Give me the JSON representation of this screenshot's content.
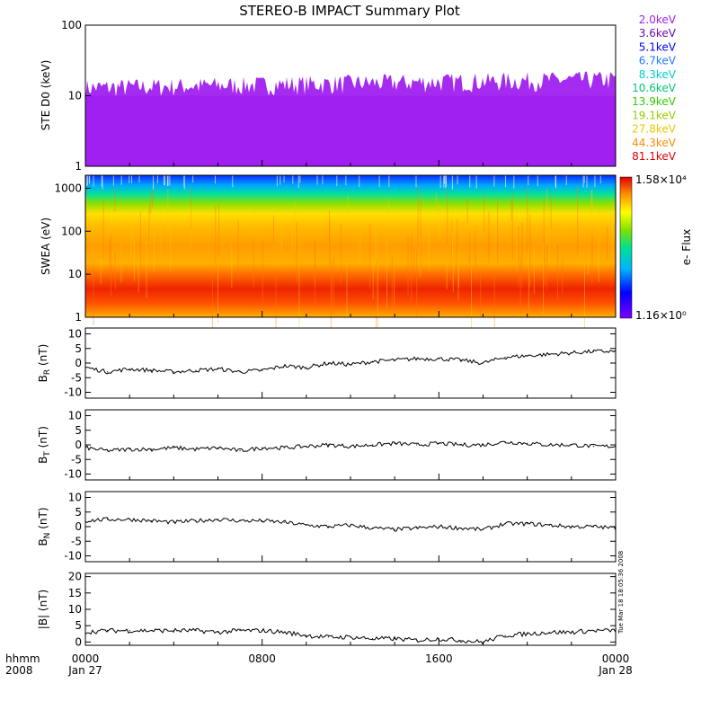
{
  "chart_data": [
    {
      "panel": "ste",
      "type": "line",
      "title": "STEREO-B IMPACT Summary Plot",
      "ylabel": "STE D0 (keV)",
      "yscale": "log",
      "ylim": [
        1,
        100
      ],
      "yticks": [
        "1",
        "10",
        "100"
      ],
      "legend_position": "right",
      "series": [
        {
          "name": "2.0keV",
          "color": "#a020f0",
          "level": 10
        },
        {
          "name": "3.6keV",
          "color": "#6a0dad",
          "level": 5
        },
        {
          "name": "5.1keV",
          "color": "#0000ff",
          "level": 3
        },
        {
          "name": "6.7keV",
          "color": "#1e7cff",
          "level": 2.3
        },
        {
          "name": "8.3keV",
          "color": "#00ced1",
          "level": 1.9
        },
        {
          "name": "10.6keV",
          "color": "#00c878",
          "level": 1.6
        },
        {
          "name": "13.9keV",
          "color": "#33cc00",
          "level": 1.4
        },
        {
          "name": "19.1keV",
          "color": "#99cc00",
          "level": 1.25
        },
        {
          "name": "27.8keV",
          "color": "#e6c800",
          "level": 1.15
        },
        {
          "name": "44.3keV",
          "color": "#ff8c00",
          "level": 1.07
        },
        {
          "name": "81.1keV",
          "color": "#e00000",
          "level": 1.02
        }
      ]
    },
    {
      "panel": "swea",
      "type": "heatmap",
      "ylabel": "SWEA (eV)",
      "yscale": "log",
      "ylim": [
        1,
        2000
      ],
      "yticks": [
        "1",
        "10",
        "100",
        "1000"
      ],
      "colorbar": {
        "label": "e- Flux",
        "max_label": "1.58×10⁴",
        "min_label": "1.16×10⁰"
      }
    },
    {
      "panel": "br",
      "type": "line",
      "ylabel": "B_R (nT)",
      "ylabel_main": "B",
      "ylabel_sub": "R",
      "ylabel_unit": "(nT)",
      "ylim": [
        -12,
        12
      ],
      "yticks": [
        -10,
        -5,
        0,
        5,
        10
      ],
      "x": [
        0,
        1,
        2,
        3,
        4,
        5,
        6,
        7,
        8,
        9,
        10,
        11,
        12,
        13,
        14,
        15,
        16,
        17,
        18,
        19,
        20,
        21,
        22,
        23,
        24
      ],
      "y": [
        -1.5,
        -3,
        -2,
        -2.5,
        -3,
        -2.5,
        -2,
        -3,
        -2.5,
        -1,
        -1.5,
        0,
        -0.5,
        0.5,
        1,
        1.5,
        1.5,
        1,
        0,
        2,
        2.5,
        3,
        3.5,
        4,
        4
      ]
    },
    {
      "panel": "bt",
      "type": "line",
      "ylabel": "B_T (nT)",
      "ylabel_main": "B",
      "ylabel_sub": "T",
      "ylabel_unit": "(nT)",
      "ylim": [
        -12,
        12
      ],
      "yticks": [
        -10,
        -5,
        0,
        5,
        10
      ],
      "x": [
        0,
        1,
        2,
        3,
        4,
        5,
        6,
        7,
        8,
        9,
        10,
        11,
        12,
        13,
        14,
        15,
        16,
        17,
        18,
        19,
        20,
        21,
        22,
        23,
        24
      ],
      "y": [
        -1,
        -2,
        -1.5,
        -1.5,
        -1,
        -1.5,
        -1,
        -2,
        -1,
        -1,
        -0.5,
        0,
        -0.5,
        0,
        0.5,
        0,
        0.5,
        0,
        0,
        1,
        0.5,
        0,
        0,
        -0.5,
        -0.5
      ]
    },
    {
      "panel": "bn",
      "type": "line",
      "ylabel": "B_N (nT)",
      "ylabel_main": "B",
      "ylabel_sub": "N",
      "ylabel_unit": "(nT)",
      "ylim": [
        -12,
        12
      ],
      "yticks": [
        -10,
        -5,
        0,
        5,
        10
      ],
      "x": [
        0,
        1,
        2,
        3,
        4,
        5,
        6,
        7,
        8,
        9,
        10,
        11,
        12,
        13,
        14,
        15,
        16,
        17,
        18,
        19,
        20,
        21,
        22,
        23,
        24
      ],
      "y": [
        2,
        2.5,
        2.5,
        2,
        1.5,
        2,
        2.5,
        2,
        2,
        1.5,
        0.5,
        0,
        0.5,
        -0.5,
        -1,
        -0.5,
        0,
        -0.5,
        -1,
        1,
        1,
        0.5,
        0,
        0,
        -0.5
      ]
    },
    {
      "panel": "bmag",
      "type": "line",
      "ylabel": "|B| (nT)",
      "ylim": [
        -1,
        21
      ],
      "yticks": [
        0,
        5,
        10,
        15,
        20
      ],
      "x": [
        0,
        1,
        2,
        3,
        4,
        5,
        6,
        7,
        8,
        9,
        10,
        11,
        12,
        13,
        14,
        15,
        16,
        17,
        18,
        19,
        20,
        21,
        22,
        23,
        24
      ],
      "y": [
        3,
        3.5,
        3.5,
        3.5,
        3.5,
        3.5,
        3,
        3.5,
        3.5,
        3,
        2,
        1.5,
        1.5,
        1,
        1,
        0.5,
        1,
        0.5,
        0,
        2,
        2.5,
        3,
        3,
        3.5,
        3.5
      ]
    }
  ],
  "xaxis": {
    "left_labels": [
      "hhmm",
      "2008"
    ],
    "ticks": [
      {
        "hour": 0,
        "time": "0000",
        "date": "Jan 27"
      },
      {
        "hour": 8,
        "time": "0800",
        "date": ""
      },
      {
        "hour": 16,
        "time": "1600",
        "date": ""
      },
      {
        "hour": 24,
        "time": "0000",
        "date": "Jan 28"
      }
    ]
  },
  "timestamp": "Tue Mar 18 18:05:36 2008"
}
